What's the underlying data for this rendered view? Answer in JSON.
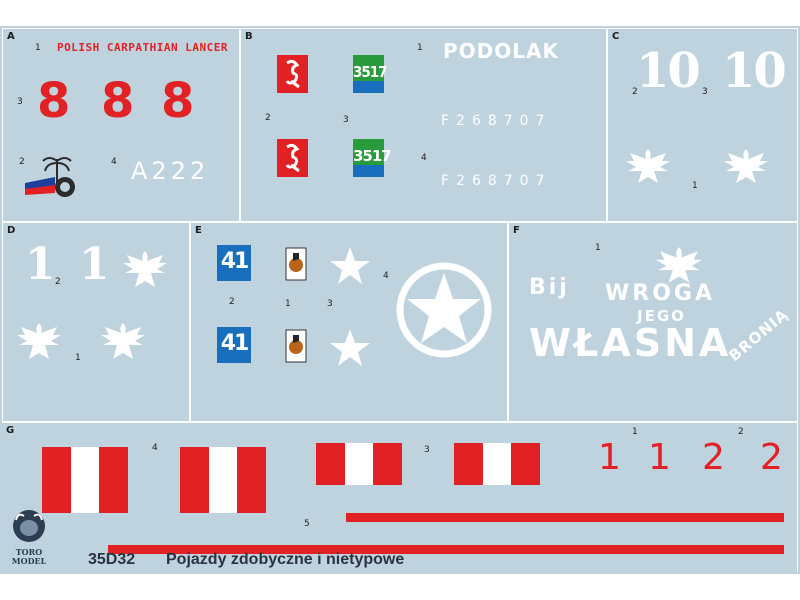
{
  "sheet": {
    "code": "35D32",
    "title": "Pojazdy zdobyczne i nietypowe",
    "brand": "TORO MODEL"
  },
  "sections": {
    "A": {
      "label": "A",
      "text_lancer": "POLISH CARPATHIAN LANCER",
      "eights": [
        "8",
        "8",
        "8"
      ],
      "reg": "A222",
      "nums": [
        "1",
        "2",
        "3",
        "4"
      ]
    },
    "B": {
      "label": "B",
      "podolak": "PODOLAK",
      "serial": "F268707",
      "tile_num": "3517",
      "nums": [
        "1",
        "2",
        "3",
        "4"
      ]
    },
    "C": {
      "label": "C",
      "ten": "10",
      "nums": [
        "1",
        "2",
        "3"
      ]
    },
    "D": {
      "label": "D",
      "one": "1",
      "nums": [
        "1",
        "2"
      ]
    },
    "E": {
      "label": "E",
      "four_one": "41",
      "nums": [
        "1",
        "2",
        "3",
        "4"
      ]
    },
    "F": {
      "label": "F",
      "bij": "Bij",
      "wroga": "WROGA",
      "jego": "JEGO",
      "wlasna": "WŁASNA",
      "bronia": "BRONIĄ",
      "nums": [
        "1"
      ]
    },
    "G": {
      "label": "G",
      "ones": [
        "1",
        "1"
      ],
      "twos": [
        "2",
        "2"
      ],
      "nums": [
        "1",
        "2",
        "3",
        "4",
        "5"
      ]
    }
  },
  "colors": {
    "sheet": "#bfd3df",
    "red": "#e22124",
    "white": "#ffffff",
    "green": "#2a9b3c",
    "blue": "#1a6fbd"
  }
}
